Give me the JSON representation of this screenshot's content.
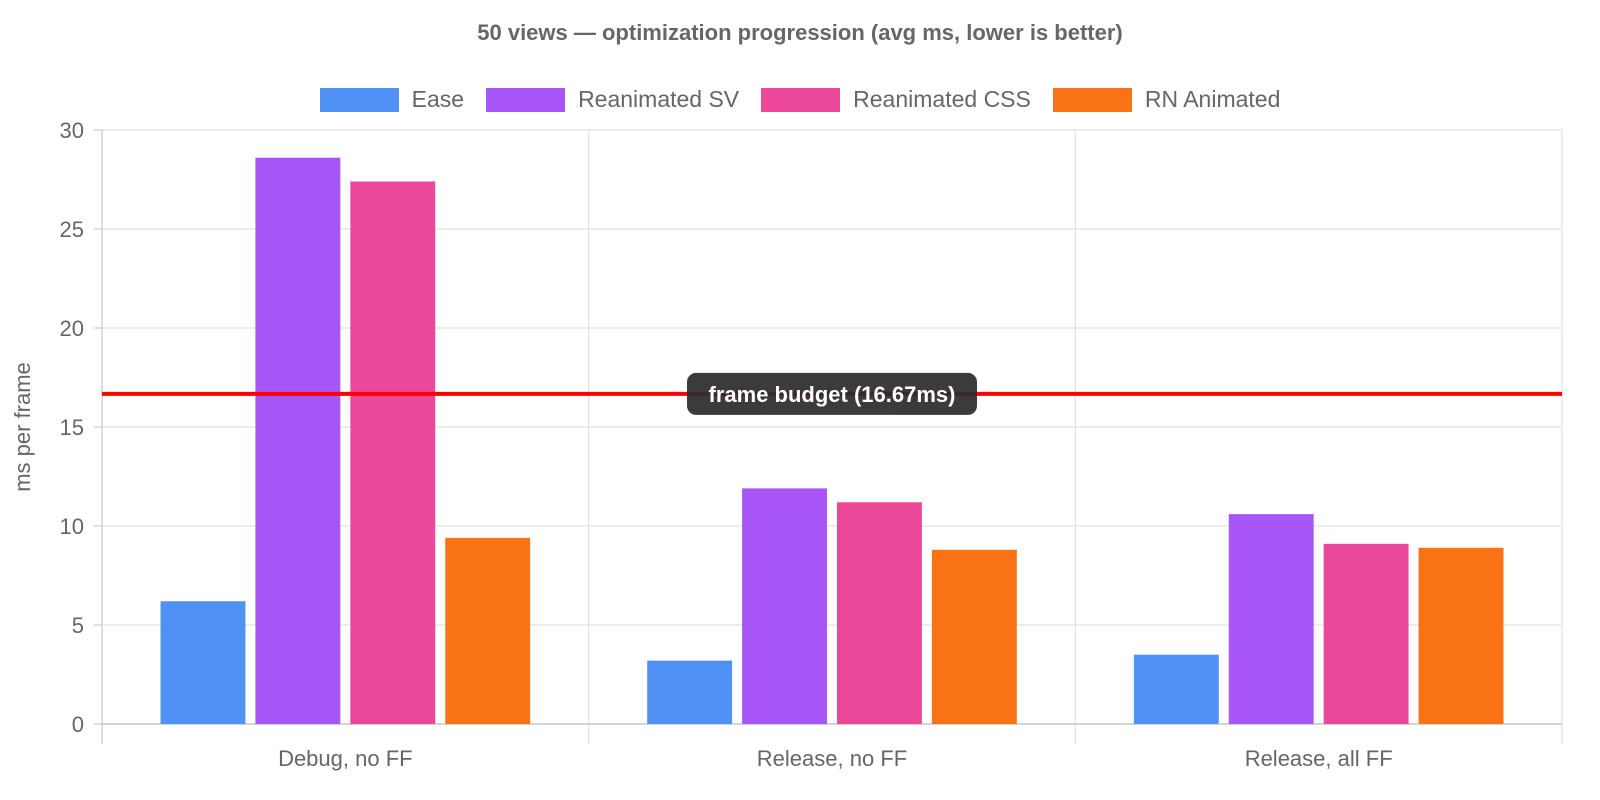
{
  "chart_data": {
    "type": "bar",
    "title": "50 views — optimization progression (avg ms, lower is better)",
    "xlabel": "",
    "ylabel": "ms per frame",
    "ylim": [
      0,
      30
    ],
    "yticks": [
      0,
      5,
      10,
      15,
      20,
      25,
      30
    ],
    "grid": true,
    "legend_position": "top",
    "categories": [
      "Debug, no FF",
      "Release, no FF",
      "Release, all FF"
    ],
    "series": [
      {
        "name": "Ease",
        "color": "#5091f5",
        "values": [
          6.2,
          3.2,
          3.5
        ]
      },
      {
        "name": "Reanimated SV",
        "color": "#a855f7",
        "values": [
          28.6,
          11.9,
          10.6
        ]
      },
      {
        "name": "Reanimated CSS",
        "color": "#ec4899",
        "values": [
          27.4,
          11.2,
          9.1
        ]
      },
      {
        "name": "RN Animated",
        "color": "#f97316",
        "values": [
          9.4,
          8.8,
          8.9
        ]
      }
    ],
    "annotations": [
      {
        "type": "hline",
        "value": 16.67,
        "color": "#ff0000",
        "label": "frame budget (16.67ms)"
      }
    ]
  }
}
